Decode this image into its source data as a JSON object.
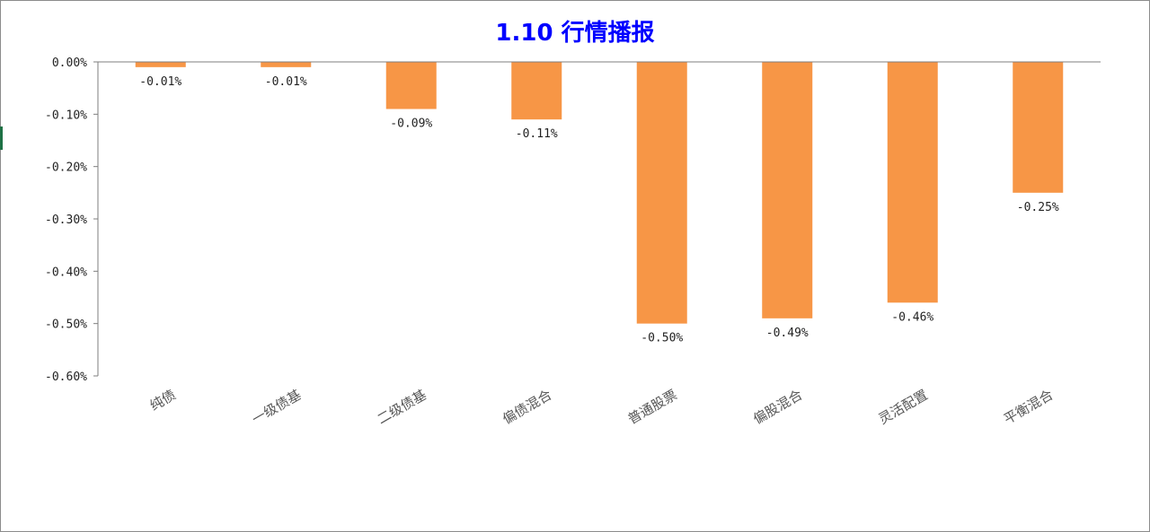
{
  "chart_data": {
    "type": "bar",
    "title": "1.10 行情播报",
    "categories": [
      "纯债",
      "一级债基",
      "二级债基",
      "偏债混合",
      "普通股票",
      "偏股混合",
      "灵活配置",
      "平衡混合"
    ],
    "values": [
      -0.01,
      -0.01,
      -0.09,
      -0.11,
      -0.5,
      -0.49,
      -0.46,
      -0.25
    ],
    "data_labels": [
      "-0.01%",
      "-0.01%",
      "-0.09%",
      "-0.11%",
      "-0.50%",
      "-0.49%",
      "-0.46%",
      "-0.25%"
    ],
    "y_ticks": [
      0,
      -0.1,
      -0.2,
      -0.3,
      -0.4,
      -0.5,
      -0.6
    ],
    "y_tick_labels": [
      "0.00%",
      "-0.10%",
      "-0.20%",
      "-0.30%",
      "-0.40%",
      "-0.50%",
      "-0.60%"
    ],
    "ylim": [
      -0.6,
      0
    ],
    "grid": false,
    "xlabel": "",
    "ylabel": "",
    "colors": {
      "bar": "#f79646",
      "title": "#0000ff",
      "axis": "#7f7f7f"
    }
  }
}
